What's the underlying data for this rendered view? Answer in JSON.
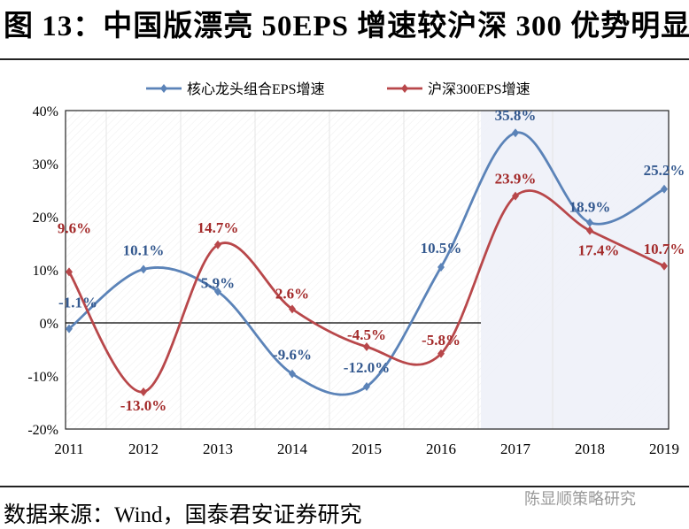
{
  "title": "图 13：中国版漂亮 50EPS 增速较沪深 300 优势明显",
  "source": "数据来源：Wind，国泰君安证券研究",
  "watermark": "陈显顺策略研究",
  "chart_data": {
    "type": "line",
    "title": "",
    "xlabel": "",
    "ylabel": "",
    "categories": [
      "2011",
      "2012",
      "2013",
      "2014",
      "2015",
      "2016",
      "2017",
      "2018",
      "2019"
    ],
    "ylim": [
      -20,
      40
    ],
    "yticks": [
      "-20%",
      "-10%",
      "0%",
      "10%",
      "20%",
      "30%",
      "40%"
    ],
    "shaded_from": "2016-2017",
    "legend_position": "top",
    "series": [
      {
        "name": "核心龙头组合EPS增速",
        "color": "#5b83b8",
        "label_color": "#34598f",
        "values": [
          -1.1,
          10.1,
          5.9,
          -9.6,
          -12.0,
          10.5,
          35.8,
          18.9,
          25.2
        ],
        "labels": [
          "-1.1%",
          "10.1%",
          "5.9%",
          "-9.6%",
          "-12.0%",
          "10.5%",
          "35.8%",
          "18.9%",
          "25.2%"
        ]
      },
      {
        "name": "沪深300EPS增速",
        "color": "#b8474a",
        "label_color": "#a32a2a",
        "values": [
          9.6,
          -13.0,
          14.7,
          2.6,
          -4.5,
          -5.8,
          23.9,
          17.4,
          10.7
        ],
        "labels": [
          "9.6%",
          "-13.0%",
          "14.7%",
          "2.6%",
          "-4.5%",
          "-5.8%",
          "23.9%",
          "17.4%",
          "10.7%"
        ]
      }
    ]
  }
}
